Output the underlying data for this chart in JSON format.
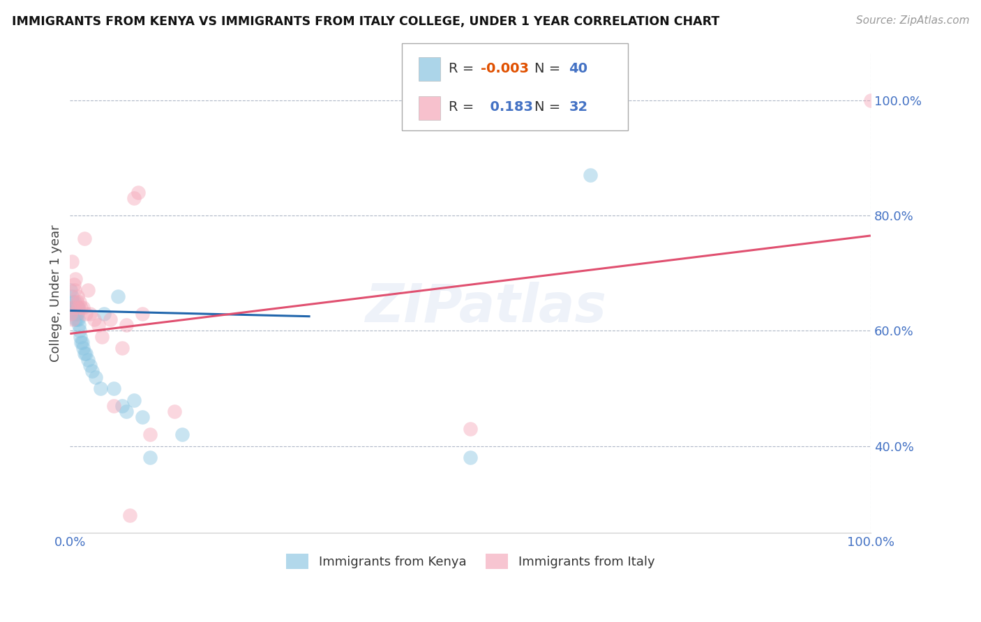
{
  "title": "IMMIGRANTS FROM KENYA VS IMMIGRANTS FROM ITALY COLLEGE, UNDER 1 YEAR CORRELATION CHART",
  "source": "Source: ZipAtlas.com",
  "ylabel": "College, Under 1 year",
  "xlim": [
    0,
    1
  ],
  "ylim": [
    0.25,
    1.08
  ],
  "x_ticks": [
    0.0,
    1.0
  ],
  "x_tick_labels": [
    "0.0%",
    "100.0%"
  ],
  "y_ticks_left": [],
  "y_ticks_right": [
    0.4,
    0.6,
    0.8,
    1.0
  ],
  "y_tick_labels_right": [
    "40.0%",
    "60.0%",
    "80.0%",
    "100.0%"
  ],
  "kenya_R": -0.003,
  "kenya_N": 40,
  "italy_R": 0.183,
  "italy_N": 32,
  "kenya_color": "#89c4e1",
  "italy_color": "#f4a7b9",
  "kenya_line_color": "#2166ac",
  "italy_line_color": "#e05070",
  "watermark": "ZIPatlas",
  "background_color": "#ffffff",
  "grid_color": "#b0b8c8",
  "kenya_x": [
    0.001,
    0.002,
    0.003,
    0.004,
    0.005,
    0.005,
    0.006,
    0.006,
    0.007,
    0.007,
    0.008,
    0.008,
    0.009,
    0.009,
    0.01,
    0.01,
    0.011,
    0.012,
    0.013,
    0.014,
    0.015,
    0.016,
    0.018,
    0.02,
    0.022,
    0.025,
    0.028,
    0.032,
    0.038,
    0.042,
    0.055,
    0.06,
    0.065,
    0.07,
    0.08,
    0.09,
    0.1,
    0.14,
    0.5,
    0.65
  ],
  "kenya_y": [
    0.67,
    0.66,
    0.65,
    0.64,
    0.64,
    0.63,
    0.65,
    0.64,
    0.63,
    0.62,
    0.63,
    0.62,
    0.64,
    0.63,
    0.64,
    0.62,
    0.61,
    0.6,
    0.59,
    0.58,
    0.58,
    0.57,
    0.56,
    0.56,
    0.55,
    0.54,
    0.53,
    0.52,
    0.5,
    0.63,
    0.5,
    0.66,
    0.47,
    0.46,
    0.48,
    0.45,
    0.38,
    0.42,
    0.38,
    0.87
  ],
  "italy_x": [
    0.001,
    0.002,
    0.003,
    0.004,
    0.005,
    0.006,
    0.007,
    0.008,
    0.009,
    0.01,
    0.012,
    0.014,
    0.016,
    0.018,
    0.02,
    0.022,
    0.025,
    0.03,
    0.035,
    0.04,
    0.05,
    0.055,
    0.065,
    0.07,
    0.075,
    0.08,
    0.085,
    0.09,
    0.1,
    0.13,
    0.5,
    1.0
  ],
  "italy_y": [
    0.63,
    0.72,
    0.62,
    0.64,
    0.68,
    0.67,
    0.69,
    0.65,
    0.66,
    0.64,
    0.65,
    0.64,
    0.64,
    0.76,
    0.63,
    0.67,
    0.63,
    0.62,
    0.61,
    0.59,
    0.62,
    0.47,
    0.57,
    0.61,
    0.28,
    0.83,
    0.84,
    0.63,
    0.42,
    0.46,
    0.43,
    1.0
  ],
  "kenya_trend_x": [
    0.0,
    0.3
  ],
  "kenya_trend_y": [
    0.635,
    0.625
  ],
  "italy_trend_x": [
    0.0,
    1.0
  ],
  "italy_trend_y": [
    0.595,
    0.765
  ]
}
